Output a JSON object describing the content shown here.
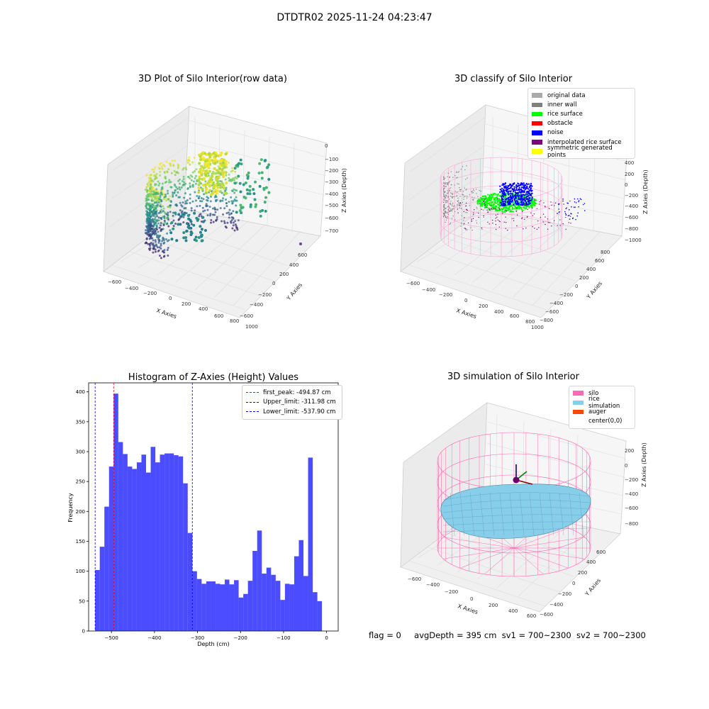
{
  "suptitle": "DTDTR02 2025-11-24 04:23:47",
  "panels": {
    "raw": {
      "title": "3D Plot of Silo Interior(row data)",
      "xlabel": "X Axies",
      "ylabel": "Y Axies",
      "zlabel": "Z Axies (Depth)",
      "xticks": [
        "−600",
        "−400",
        "−200",
        "0",
        "200",
        "400",
        "600",
        "800",
        "1000"
      ],
      "yticks": [
        "600",
        "400",
        "200",
        "0",
        "−200",
        "−400",
        "−600"
      ],
      "zticks": [
        "0",
        "−100",
        "−200",
        "−300",
        "−400",
        "−500",
        "−600",
        "−700"
      ]
    },
    "classify": {
      "title": "3D classify of Silo Interior",
      "xlabel": "X Axies",
      "ylabel": "Y Axies",
      "zlabel": "Z Axies (Depth)",
      "xticks": [
        "−600",
        "−400",
        "−200",
        "0",
        "200",
        "400",
        "600",
        "800",
        "1000"
      ],
      "yticks": [
        "800",
        "600",
        "400",
        "200",
        "0",
        "−200",
        "−400",
        "−600",
        "−800"
      ],
      "zticks": [
        "400",
        "200",
        "0",
        "−200",
        "−400",
        "−600",
        "−800",
        "−1000"
      ],
      "legend": [
        {
          "label": "original data",
          "color": "#aaaaaa"
        },
        {
          "label": "inner wall",
          "color": "#808080"
        },
        {
          "label": "rice surface",
          "color": "#00ff00"
        },
        {
          "label": "obstacle",
          "color": "#ff0000"
        },
        {
          "label": "noise",
          "color": "#0000ff"
        },
        {
          "label": "interpolated rice surface",
          "color": "#800080"
        },
        {
          "label": "symmetric generated points",
          "color": "#ffff00"
        }
      ]
    },
    "simulation": {
      "title": "3D simulation of Silo Interior",
      "xlabel": "X Axies",
      "ylabel": "Y Axies",
      "zlabel": "Z Axies (Depth)",
      "xticks": [
        "−600",
        "−400",
        "−200",
        "0",
        "200",
        "400",
        "600"
      ],
      "yticks": [
        "600",
        "400",
        "200",
        "0",
        "−200",
        "−400",
        "−600"
      ],
      "zticks": [
        "200",
        "0",
        "−200",
        "−400",
        "−600",
        "−800"
      ],
      "legend": [
        {
          "label": "silo",
          "color": "#ff69b4"
        },
        {
          "label": "rice simulation",
          "color": "#87ceeb"
        },
        {
          "label": "auger",
          "color": "#ff4500"
        },
        {
          "label": "center(0,0)",
          "color": "#ffffff"
        }
      ]
    }
  },
  "chart_data": {
    "type": "bar",
    "title": "Histogram of Z-Axies (Height) Values",
    "xlabel": "Depth (cm)",
    "ylabel": "Frequency",
    "xlim": [
      -553,
      27
    ],
    "ylim": [
      0,
      415
    ],
    "xticks": [
      -500,
      -400,
      -300,
      -200,
      -100,
      0
    ],
    "xtick_labels": [
      "−500",
      "−400",
      "−300",
      "−200",
      "−100",
      "0"
    ],
    "yticks": [
      0,
      50,
      100,
      150,
      200,
      250,
      300,
      350,
      400
    ],
    "bar_color": "#0000ff",
    "bin_start": -537.9,
    "bin_width": 10.76,
    "values": [
      102,
      141,
      208,
      275,
      397,
      316,
      296,
      275,
      271,
      282,
      295,
      265,
      308,
      282,
      295,
      297,
      297,
      294,
      292,
      247,
      164,
      100,
      87,
      79,
      83,
      83,
      79,
      78,
      86,
      78,
      85,
      56,
      62,
      84,
      134,
      168,
      96,
      106,
      94,
      84,
      52,
      79,
      78,
      125,
      152,
      92,
      290,
      65,
      50
    ],
    "vlines": [
      {
        "label": "first_peak: -494.87 cm",
        "x": -494.87,
        "color": "#ff0000"
      },
      {
        "label": "Upper_limit: -311.98 cm",
        "x": -311.98,
        "color": "#0000ff"
      },
      {
        "label": "Lower_limit: -537.90 cm",
        "x": -537.9,
        "color": "#0000ff"
      }
    ]
  },
  "footer": {
    "flag": "flag = 0",
    "avg_depth": "avgDepth = 395 cm",
    "sv1": "sv1 = 700~2300",
    "sv2": "sv2 = 700~2300"
  }
}
